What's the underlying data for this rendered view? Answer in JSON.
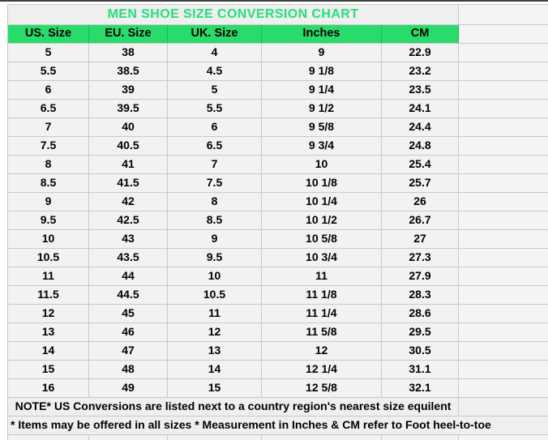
{
  "title": "MEN SHOE SIZE CONVERSION CHART",
  "table": {
    "columns": [
      "US. Size",
      "EU. Size",
      "UK. Size",
      "Inches",
      "CM"
    ],
    "rows": [
      [
        "5",
        "38",
        "4",
        "9",
        "22.9"
      ],
      [
        "5.5",
        "38.5",
        "4.5",
        "9 1/8",
        "23.2"
      ],
      [
        "6",
        "39",
        "5",
        "9 1/4",
        "23.5"
      ],
      [
        "6.5",
        "39.5",
        "5.5",
        "9 1/2",
        "24.1"
      ],
      [
        "7",
        "40",
        "6",
        "9 5/8",
        "24.4"
      ],
      [
        "7.5",
        "40.5",
        "6.5",
        "9 3/4",
        "24.8"
      ],
      [
        "8",
        "41",
        "7",
        "10",
        "25.4"
      ],
      [
        "8.5",
        "41.5",
        "7.5",
        "10 1/8",
        "25.7"
      ],
      [
        "9",
        "42",
        "8",
        "10 1/4",
        "26"
      ],
      [
        "9.5",
        "42.5",
        "8.5",
        "10 1/2",
        "26.7"
      ],
      [
        "10",
        "43",
        "9",
        "10 5/8",
        "27"
      ],
      [
        "10.5",
        "43.5",
        "9.5",
        "10 3/4",
        "27.3"
      ],
      [
        "11",
        "44",
        "10",
        "11",
        "27.9"
      ],
      [
        "11.5",
        "44.5",
        "10.5",
        "11 1/8",
        "28.3"
      ],
      [
        "12",
        "45",
        "11",
        "11 1/4",
        "28.6"
      ],
      [
        "13",
        "46",
        "12",
        "11 5/8",
        "29.5"
      ],
      [
        "14",
        "47",
        "13",
        "12",
        "30.5"
      ],
      [
        "15",
        "48",
        "14",
        "12 1/4",
        "31.1"
      ],
      [
        "16",
        "49",
        "15",
        "12 5/8",
        "32.1"
      ]
    ]
  },
  "notes": {
    "note1": "NOTE* US Conversions are listed next to a country region's nearest size equilent",
    "note2": "* Items may be offered in all sizes * Measurement in Inches & CM refer to Foot heel-to-toe"
  },
  "colors": {
    "title_text": "#22e07c",
    "header_bg": "#28db6b",
    "cell_bg": "#f2f2f2",
    "grid_line": "#c9c9c9"
  },
  "chart_data": {
    "type": "table",
    "title": "MEN SHOE SIZE CONVERSION CHART",
    "columns": [
      "US. Size",
      "EU. Size",
      "UK. Size",
      "Inches",
      "CM"
    ],
    "rows": [
      [
        "5",
        "38",
        "4",
        "9",
        "22.9"
      ],
      [
        "5.5",
        "38.5",
        "4.5",
        "9 1/8",
        "23.2"
      ],
      [
        "6",
        "39",
        "5",
        "9 1/4",
        "23.5"
      ],
      [
        "6.5",
        "39.5",
        "5.5",
        "9 1/2",
        "24.1"
      ],
      [
        "7",
        "40",
        "6",
        "9 5/8",
        "24.4"
      ],
      [
        "7.5",
        "40.5",
        "6.5",
        "9 3/4",
        "24.8"
      ],
      [
        "8",
        "41",
        "7",
        "10",
        "25.4"
      ],
      [
        "8.5",
        "41.5",
        "7.5",
        "10 1/8",
        "25.7"
      ],
      [
        "9",
        "42",
        "8",
        "10 1/4",
        "26"
      ],
      [
        "9.5",
        "42.5",
        "8.5",
        "10 1/2",
        "26.7"
      ],
      [
        "10",
        "43",
        "9",
        "10 5/8",
        "27"
      ],
      [
        "10.5",
        "43.5",
        "9.5",
        "10 3/4",
        "27.3"
      ],
      [
        "11",
        "44",
        "10",
        "11",
        "27.9"
      ],
      [
        "11.5",
        "44.5",
        "10.5",
        "11 1/8",
        "28.3"
      ],
      [
        "12",
        "45",
        "11",
        "11 1/4",
        "28.6"
      ],
      [
        "13",
        "46",
        "12",
        "11 5/8",
        "29.5"
      ],
      [
        "14",
        "47",
        "13",
        "12",
        "30.5"
      ],
      [
        "15",
        "48",
        "14",
        "12 1/4",
        "31.1"
      ],
      [
        "16",
        "49",
        "15",
        "12 5/8",
        "32.1"
      ]
    ]
  }
}
